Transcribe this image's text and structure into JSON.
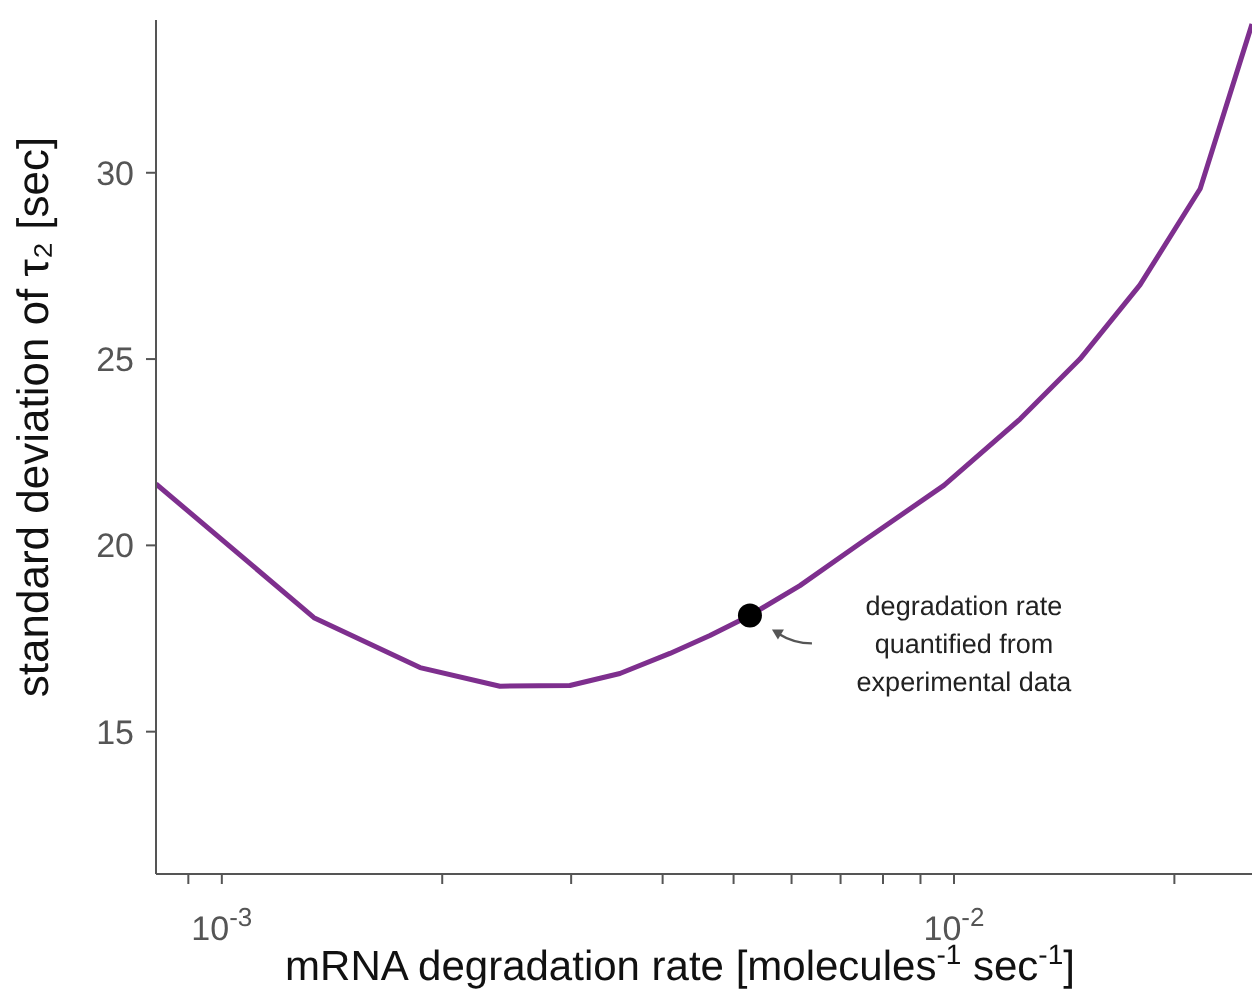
{
  "chart_data": {
    "type": "line",
    "xlabel": "mRNA degradation rate [molecules$^{-1}$ sec$^{-1}$]",
    "ylabel": "standard deviation of τ₂ [sec]",
    "log": "x",
    "marker": "none",
    "xlim": [
      0.000813,
      0.02553
    ],
    "ylim": [
      11.18,
      34.1
    ],
    "xticks": [
      {
        "value": 0.0009,
        "label": null
      },
      {
        "value": 0.001,
        "label": "10$^{-3}$"
      },
      {
        "value": 0.002,
        "label": null
      },
      {
        "value": 0.003,
        "label": null
      },
      {
        "value": 0.004,
        "label": null
      },
      {
        "value": 0.005,
        "label": null
      },
      {
        "value": 0.006,
        "label": null
      },
      {
        "value": 0.007,
        "label": null
      },
      {
        "value": 0.008,
        "label": null
      },
      {
        "value": 0.009,
        "label": null
      },
      {
        "value": 0.01,
        "label": "10$^{-2}$"
      },
      {
        "value": 0.02,
        "label": null
      }
    ],
    "yticks": [
      15,
      20,
      25,
      30
    ],
    "series": [
      {
        "color": "#7e2f8e",
        "x": [
          0.000813,
          0.001336,
          0.001865,
          0.002398,
          0.002988,
          0.003497,
          0.004093,
          0.004642,
          0.005264,
          0.00616,
          0.007438,
          0.00969,
          0.01231,
          0.01486,
          0.01795,
          0.02169,
          0.02553
        ],
        "values": [
          21.65,
          18.06,
          16.72,
          16.22,
          16.24,
          16.56,
          17.1,
          17.58,
          18.12,
          18.92,
          20.05,
          21.61,
          23.39,
          25.0,
          26.99,
          29.57,
          33.99
        ]
      },
      {
        "type": "scatter",
        "marker": "circle",
        "color": "#000000",
        "x": [
          0.005264
        ],
        "values": [
          18.12
        ]
      }
    ],
    "annotations": [
      "degradation rate\nquantified from\nexperimental data"
    ]
  }
}
